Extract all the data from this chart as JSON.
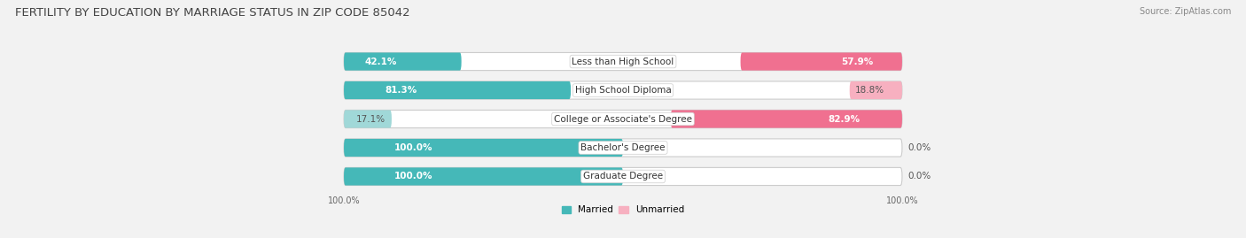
{
  "title": "FERTILITY BY EDUCATION BY MARRIAGE STATUS IN ZIP CODE 85042",
  "source": "Source: ZipAtlas.com",
  "categories": [
    "Less than High School",
    "High School Diploma",
    "College or Associate's Degree",
    "Bachelor's Degree",
    "Graduate Degree"
  ],
  "married": [
    42.1,
    81.3,
    17.1,
    100.0,
    100.0
  ],
  "unmarried": [
    57.9,
    18.8,
    82.9,
    0.0,
    0.0
  ],
  "married_color": "#45b8b8",
  "married_color_light": "#a0d8d8",
  "unmarried_color": "#f07090",
  "unmarried_color_light": "#f7b0c0",
  "background_color": "#f2f2f2",
  "bar_bg_color": "#e8e8e8",
  "title_fontsize": 9.5,
  "label_fontsize": 7.5,
  "value_fontsize": 7.5,
  "tick_fontsize": 7,
  "source_fontsize": 7
}
